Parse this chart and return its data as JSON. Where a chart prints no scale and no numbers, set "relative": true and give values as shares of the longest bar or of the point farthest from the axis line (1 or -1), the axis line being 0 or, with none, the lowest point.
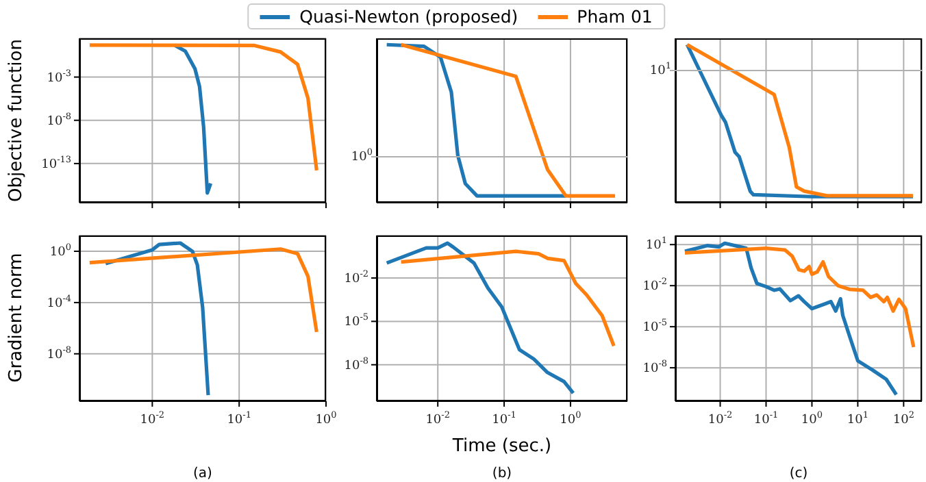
{
  "chart_data": [
    {
      "type": "line",
      "ylabel": "Objective function",
      "log": "xy",
      "grid": true,
      "tick_labels": "y",
      "legend": "top",
      "xlim": [
        0.00145,
        1.0
      ],
      "xticks": [
        {
          "value": 0.01,
          "label": null
        },
        {
          "value": 0.1,
          "label": null
        },
        {
          "value": 1,
          "label": null
        }
      ],
      "ylim": [
        3e-18,
        30
      ],
      "yticks": [
        {
          "value": 0.001,
          "label": "10$^{-3}$"
        },
        {
          "value": 1e-08,
          "label": "10$^{-8}$"
        },
        {
          "value": 1e-13,
          "label": "10$^{-13}$"
        }
      ],
      "series": [
        {
          "name": "Quasi-Newton (proposed)",
          "color": "#1f77b4",
          "x": [
            0.018,
            0.024,
            0.031,
            0.035,
            0.039,
            0.043,
            0.047
          ],
          "values": [
            5,
            1,
            0.009,
            8e-05,
            1.6e-09,
            4e-17,
            5e-16
          ]
        },
        {
          "name": "Pham 01",
          "color": "#ff7f0e",
          "x": [
            0.0019,
            0.15,
            0.3,
            0.47,
            0.62,
            0.78
          ],
          "values": [
            5,
            4.5,
            0.8,
            0.03,
            3.5e-06,
            1.6e-14
          ]
        }
      ]
    },
    {
      "type": "line",
      "relative": true,
      "log": "x",
      "grid": "x",
      "tick_labels": false,
      "annotations": [
        "10$^{0}$"
      ],
      "xlim": [
        0.0012,
        7.2
      ],
      "xticks": [
        {
          "value": 0.01,
          "label": null
        },
        {
          "value": 0.1,
          "label": null
        },
        {
          "value": 1,
          "label": null
        }
      ],
      "series": [
        {
          "color": "#1f77b4",
          "x": [
            0.0017,
            0.0062,
            0.011,
            0.016,
            0.02,
            0.026,
            0.039,
            0.85
          ],
          "values": [
            1,
            0.99,
            0.92,
            0.7,
            0.3,
            0.12,
            0.043,
            0.043
          ]
        },
        {
          "color": "#ff7f0e",
          "x": [
            0.0028,
            0.15,
            0.45,
            0.85,
            4.7
          ],
          "values": [
            1,
            0.8,
            0.21,
            0.043,
            0.043
          ]
        }
      ]
    },
    {
      "type": "line",
      "relative": true,
      "log": "x",
      "grid": "x",
      "tick_labels": false,
      "annotations": [
        "10$^{1}$"
      ],
      "xlim": [
        0.00105,
        250
      ],
      "xticks": [
        {
          "value": 0.01,
          "label": null
        },
        {
          "value": 0.1,
          "label": null
        },
        {
          "value": 1,
          "label": null
        },
        {
          "value": 10,
          "label": null
        },
        {
          "value": 100,
          "label": null
        }
      ],
      "series": [
        {
          "color": "#1f77b4",
          "x": [
            0.0019,
            0.0105,
            0.013,
            0.021,
            0.026,
            0.045,
            0.053,
            1.0,
            160
          ],
          "values": [
            1,
            0.554,
            0.51,
            0.32,
            0.29,
            0.073,
            0.05,
            0.038,
            0.038
          ]
        },
        {
          "color": "#ff7f0e",
          "x": [
            0.0019,
            0.15,
            0.32,
            0.46,
            0.68,
            2.1,
            160
          ],
          "values": [
            1,
            0.685,
            0.35,
            0.1,
            0.073,
            0.044,
            0.044
          ]
        }
      ]
    },
    {
      "type": "line",
      "ylabel": "Gradient norm",
      "log": "xy",
      "grid": true,
      "annotations": [
        "(a)"
      ],
      "xlim": [
        0.00145,
        1.0
      ],
      "xticks": [
        {
          "value": 0.01,
          "label": "10$^{-2}$"
        },
        {
          "value": 0.1,
          "label": "10$^{-1}$"
        },
        {
          "value": 1,
          "label": "10$^{0}$"
        }
      ],
      "ylim": [
        2e-12,
        17
      ],
      "yticks": [
        {
          "value": 1,
          "label": "10$^{0}$"
        },
        {
          "value": 0.0001,
          "label": "10$^{-4}$"
        },
        {
          "value": 1e-08,
          "label": "10$^{-8}$"
        }
      ],
      "series": [
        {
          "color": "#1f77b4",
          "x": [
            0.0029,
            0.01,
            0.012,
            0.021,
            0.029,
            0.033,
            0.038,
            0.044
          ],
          "values": [
            0.11,
            1.3,
            3.4,
            4.4,
            1,
            0.087,
            4e-05,
            6e-12
          ]
        },
        {
          "color": "#ff7f0e",
          "x": [
            0.0019,
            0.3,
            0.47,
            0.62,
            0.78
          ],
          "values": [
            0.13,
            1.5,
            0.66,
            0.011,
            5e-07
          ]
        }
      ]
    },
    {
      "type": "line",
      "xlabel": "Time (sec.)",
      "log": "xy",
      "grid": true,
      "annotations": [
        "(b)"
      ],
      "xlim": [
        0.0012,
        7.2
      ],
      "xticks": [
        {
          "value": 0.01,
          "label": "10$^{-2}$"
        },
        {
          "value": 0.1,
          "label": "10$^{-1}$"
        },
        {
          "value": 1,
          "label": "10$^{0}$"
        }
      ],
      "ylim": [
        3e-11,
        8.7
      ],
      "yticks": [
        {
          "value": 0.01,
          "label": "10$^{-2}$"
        },
        {
          "value": 1e-05,
          "label": "10$^{-5}$"
        },
        {
          "value": 1e-08,
          "label": "10$^{-8}$"
        }
      ],
      "series": [
        {
          "color": "#1f77b4",
          "x": [
            0.0017,
            0.0067,
            0.01,
            0.014,
            0.017,
            0.035,
            0.057,
            0.092,
            0.17,
            0.28,
            0.45,
            0.8,
            1.1
          ],
          "values": [
            0.11,
            1.2,
            1.2,
            2.6,
            1.4,
            0.11,
            0.002,
            0.0001,
            1.1e-07,
            2.5e-08,
            2.9e-09,
            6.8e-10,
            1.1e-10
          ]
        },
        {
          "color": "#ff7f0e",
          "x": [
            0.0028,
            0.15,
            0.33,
            0.45,
            0.8,
            1.2,
            1.75,
            3.0,
            4.5
          ],
          "values": [
            0.13,
            0.7,
            0.48,
            0.23,
            0.16,
            0.0042,
            0.00068,
            2.5e-05,
            2e-07
          ]
        }
      ]
    },
    {
      "type": "line",
      "log": "xy",
      "grid": true,
      "annotations": [
        "(c)"
      ],
      "xlim": [
        0.00105,
        250
      ],
      "xticks": [
        {
          "value": 0.01,
          "label": "10$^{-2}$"
        },
        {
          "value": 0.1,
          "label": "10$^{-1}$"
        },
        {
          "value": 1,
          "label": "10$^{0}$"
        },
        {
          "value": 10,
          "label": "10$^{1}$"
        },
        {
          "value": 100,
          "label": "10$^{2}$"
        }
      ],
      "ylim": [
        3.6e-11,
        46
      ],
      "yticks": [
        {
          "value": 10,
          "label": "10$^{1}$"
        },
        {
          "value": 0.01,
          "label": "10$^{-2}$"
        },
        {
          "value": 1e-05,
          "label": "10$^{-5}$"
        },
        {
          "value": 1e-08,
          "label": "10$^{-8}$"
        }
      ],
      "series": [
        {
          "color": "#1f77b4",
          "x": [
            0.0017,
            0.0052,
            0.0093,
            0.0126,
            0.037,
            0.047,
            0.063,
            0.1,
            0.15,
            0.2,
            0.34,
            0.51,
            0.68,
            1.0,
            1.9,
            2.6,
            3.3,
            4.2,
            4.7,
            6.6,
            10,
            21,
            42,
            69
          ],
          "values": [
            3.2,
            8.5,
            6.8,
            12.6,
            5.4,
            0.21,
            0.0145,
            0.0085,
            0.0046,
            0.0058,
            0.0008,
            0.0018,
            0.00068,
            0.00021,
            0.00046,
            0.00068,
            0.00014,
            0.0011,
            6.8e-05,
            2.1e-06,
            3.2e-08,
            6.8e-09,
            1.4e-09,
            1.1e-10
          ]
        },
        {
          "color": "#ff7f0e",
          "x": [
            0.0017,
            0.1,
            0.26,
            0.37,
            0.52,
            0.68,
            0.87,
            1.0,
            1.3,
            1.75,
            2.3,
            3.7,
            6.6,
            13,
            19,
            26,
            37,
            44,
            59,
            79,
            110,
            165
          ],
          "values": [
            2.5,
            5.4,
            4,
            1.45,
            0.145,
            0.115,
            0.25,
            0.068,
            0.1,
            0.54,
            0.046,
            0.01,
            0.0054,
            0.0046,
            0.0014,
            0.0021,
            0.00068,
            0.0014,
            0.00014,
            0.001,
            0.00021,
            3.2e-07
          ]
        }
      ]
    }
  ]
}
